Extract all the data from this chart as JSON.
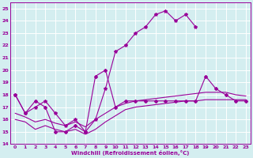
{
  "xlabel": "Windchill (Refroidissement éolien,°C)",
  "color": "#990099",
  "bg_color": "#d4eef0",
  "grid_color": "#ffffff",
  "ylim": [
    14,
    25.5
  ],
  "xlim": [
    -0.5,
    23.5
  ],
  "line_upper_x": [
    0,
    1,
    2,
    3,
    4,
    5,
    6,
    7,
    8,
    9,
    10,
    11,
    12,
    13,
    14,
    15,
    16,
    17,
    18
  ],
  "line_upper_y": [
    18,
    16.5,
    17,
    17.5,
    16.5,
    15.5,
    16,
    15,
    16,
    18.5,
    21.5,
    22,
    23,
    23.5,
    24.5,
    24.8,
    24,
    24.5,
    23.5
  ],
  "line_lower_x": [
    0,
    1,
    2,
    3,
    4,
    5,
    6,
    7,
    8,
    9,
    10,
    11,
    12,
    13,
    14,
    15,
    16,
    17,
    18,
    19,
    20,
    21,
    22,
    23
  ],
  "line_lower_y": [
    16,
    15.8,
    15.2,
    15.5,
    15.2,
    15.0,
    15.2,
    14.8,
    15.2,
    15.8,
    16.3,
    16.8,
    17.0,
    17.1,
    17.2,
    17.3,
    17.4,
    17.5,
    17.5,
    17.6,
    17.6,
    17.6,
    17.6,
    17.6
  ],
  "line_mid_x": [
    0,
    1,
    2,
    3,
    4,
    5,
    6,
    7,
    8,
    9,
    10,
    11,
    12,
    13,
    14,
    15,
    16,
    17,
    18,
    19,
    20,
    21,
    22,
    23
  ],
  "line_mid_y": [
    18,
    16.5,
    17.5,
    17,
    15,
    15,
    15.5,
    15,
    19.5,
    20,
    17,
    17.5,
    17.5,
    17.5,
    17.5,
    17.5,
    17.5,
    17.5,
    17.5,
    19.5,
    18.5,
    18,
    17.5,
    17.5
  ],
  "line_straight_x": [
    0,
    1,
    2,
    3,
    4,
    5,
    6,
    7,
    8,
    9,
    10,
    11,
    12,
    13,
    14,
    15,
    16,
    17,
    18,
    19,
    20,
    21,
    22,
    23
  ],
  "line_straight_y": [
    16.5,
    16.2,
    15.8,
    16.0,
    15.7,
    15.5,
    15.8,
    15.4,
    16.0,
    16.5,
    17.0,
    17.3,
    17.5,
    17.6,
    17.7,
    17.8,
    17.9,
    18.0,
    18.1,
    18.2,
    18.2,
    18.2,
    18.0,
    17.9
  ]
}
